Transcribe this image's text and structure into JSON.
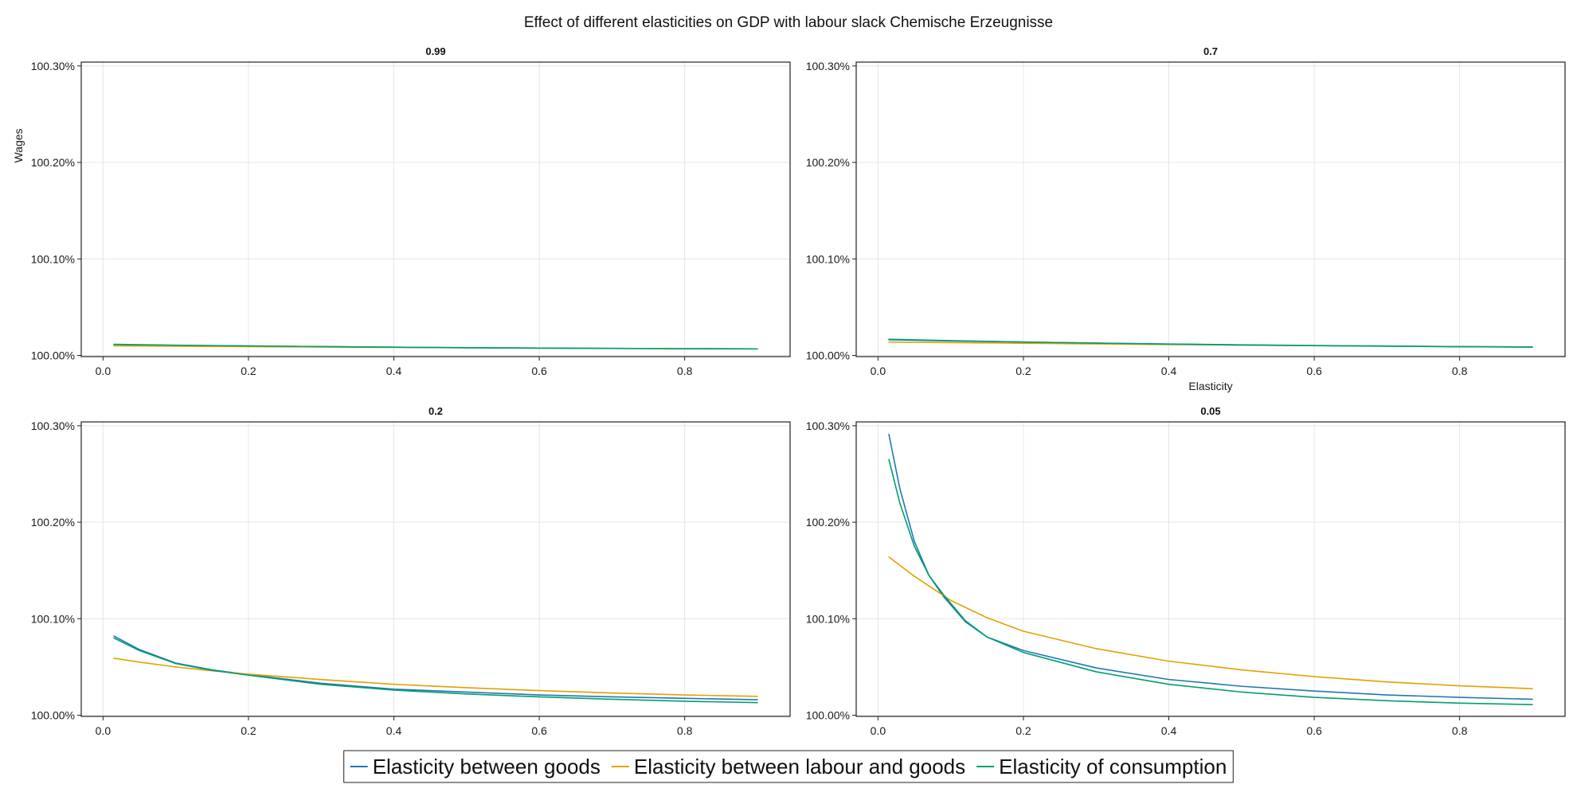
{
  "figure": {
    "title": "Effect of different elasticities on GDP with labour slack Chemische Erzeugnisse"
  },
  "legend": {
    "position": "bottom-center",
    "items": [
      {
        "label": "Elasticity between goods",
        "color": "#1f77b4"
      },
      {
        "label": "Elasticity between labour and goods",
        "color": "#e69f00"
      },
      {
        "label": "Elasticity of consumption",
        "color": "#009e73"
      }
    ]
  },
  "chart_data": [
    {
      "type": "line",
      "title": "0.99",
      "xlabel": "",
      "ylabel": "Wages",
      "xlim": [
        -0.03,
        0.945
      ],
      "ylim": [
        99.99875,
        100.304
      ],
      "xticks": [
        0.0,
        0.2,
        0.4,
        0.6,
        0.8
      ],
      "xtick_labels": [
        "0.0",
        "0.2",
        "0.4",
        "0.6",
        "0.8"
      ],
      "yticks": [
        100.0,
        100.1,
        100.2,
        100.3
      ],
      "ytick_labels": [
        "100.00%",
        "100.10%",
        "100.20%",
        "100.30%"
      ],
      "grid": true,
      "series": [
        {
          "name": "Elasticity between goods",
          "color": "#1f77b4",
          "x": [
            0.015,
            0.1,
            0.2,
            0.3,
            0.4,
            0.5,
            0.6,
            0.7,
            0.8,
            0.9
          ],
          "y": [
            100.0112,
            100.0104,
            100.0097,
            100.0091,
            100.0085,
            100.008,
            100.0076,
            100.0073,
            100.007,
            100.0068
          ]
        },
        {
          "name": "Elasticity between labour and goods",
          "color": "#e69f00",
          "x": [
            0.015,
            0.1,
            0.2,
            0.3,
            0.4,
            0.5,
            0.6,
            0.7,
            0.8,
            0.9
          ],
          "y": [
            100.0099,
            100.0095,
            100.0091,
            100.0087,
            100.0083,
            100.0079,
            100.0076,
            100.0073,
            100.007,
            100.0068
          ]
        },
        {
          "name": "Elasticity of consumption",
          "color": "#009e73",
          "x": [
            0.015,
            0.1,
            0.2,
            0.3,
            0.4,
            0.5,
            0.6,
            0.7,
            0.8,
            0.9
          ],
          "y": [
            100.0115,
            100.0106,
            100.0098,
            100.0091,
            100.0085,
            100.008,
            100.0076,
            100.0072,
            100.0069,
            100.0067
          ]
        }
      ]
    },
    {
      "type": "line",
      "title": "0.7",
      "xlabel": "Elasticity",
      "ylabel": "",
      "xlim": [
        -0.03,
        0.945
      ],
      "ylim": [
        99.99875,
        100.304
      ],
      "xticks": [
        0.0,
        0.2,
        0.4,
        0.6,
        0.8
      ],
      "xtick_labels": [
        "0.0",
        "0.2",
        "0.4",
        "0.6",
        "0.8"
      ],
      "yticks": [
        100.0,
        100.1,
        100.2,
        100.3
      ],
      "ytick_labels": [
        "100.00%",
        "100.10%",
        "100.20%",
        "100.30%"
      ],
      "grid": true,
      "series": [
        {
          "name": "Elasticity between goods",
          "color": "#1f77b4",
          "x": [
            0.015,
            0.1,
            0.2,
            0.3,
            0.4,
            0.5,
            0.6,
            0.7,
            0.8,
            0.9
          ],
          "y": [
            100.0162,
            100.015,
            100.0138,
            100.0127,
            100.0118,
            100.011,
            100.0103,
            100.0097,
            100.0091,
            100.0087
          ]
        },
        {
          "name": "Elasticity between labour and goods",
          "color": "#e69f00",
          "x": [
            0.015,
            0.1,
            0.2,
            0.3,
            0.4,
            0.5,
            0.6,
            0.7,
            0.8,
            0.9
          ],
          "y": [
            100.0138,
            100.0132,
            100.0126,
            100.0119,
            100.0113,
            100.0107,
            100.0101,
            100.0096,
            100.0091,
            100.0087
          ]
        },
        {
          "name": "Elasticity of consumption",
          "color": "#009e73",
          "x": [
            0.015,
            0.1,
            0.2,
            0.3,
            0.4,
            0.5,
            0.6,
            0.7,
            0.8,
            0.9
          ],
          "y": [
            100.0168,
            100.0153,
            100.0139,
            100.0127,
            100.0117,
            100.0108,
            100.0101,
            100.0095,
            100.009,
            100.0086
          ]
        }
      ]
    },
    {
      "type": "line",
      "title": "0.2",
      "xlabel": "",
      "ylabel": "",
      "xlim": [
        -0.03,
        0.945
      ],
      "ylim": [
        99.99875,
        100.304
      ],
      "xticks": [
        0.0,
        0.2,
        0.4,
        0.6,
        0.8
      ],
      "xtick_labels": [
        "0.0",
        "0.2",
        "0.4",
        "0.6",
        "0.8"
      ],
      "yticks": [
        100.0,
        100.1,
        100.2,
        100.3
      ],
      "ytick_labels": [
        "100.00%",
        "100.10%",
        "100.20%",
        "100.30%"
      ],
      "grid": true,
      "series": [
        {
          "name": "Elasticity between goods",
          "color": "#1f77b4",
          "x": [
            0.015,
            0.05,
            0.1,
            0.15,
            0.2,
            0.3,
            0.4,
            0.5,
            0.6,
            0.7,
            0.8,
            0.9
          ],
          "y": [
            100.082,
            100.068,
            100.054,
            100.047,
            100.042,
            100.033,
            100.027,
            100.024,
            100.021,
            100.019,
            100.0175,
            100.016
          ]
        },
        {
          "name": "Elasticity between labour and goods",
          "color": "#e69f00",
          "x": [
            0.015,
            0.05,
            0.1,
            0.15,
            0.2,
            0.3,
            0.4,
            0.5,
            0.6,
            0.7,
            0.8,
            0.9
          ],
          "y": [
            100.059,
            100.055,
            100.05,
            100.046,
            100.0425,
            100.037,
            100.032,
            100.0285,
            100.0255,
            100.023,
            100.021,
            100.0195
          ]
        },
        {
          "name": "Elasticity of consumption",
          "color": "#009e73",
          "x": [
            0.015,
            0.05,
            0.1,
            0.15,
            0.2,
            0.3,
            0.4,
            0.5,
            0.6,
            0.7,
            0.8,
            0.9
          ],
          "y": [
            100.08,
            100.067,
            100.0535,
            100.0465,
            100.0415,
            100.032,
            100.026,
            100.022,
            100.019,
            100.0165,
            100.0145,
            100.013
          ]
        }
      ]
    },
    {
      "type": "line",
      "title": "0.05",
      "xlabel": "",
      "ylabel": "",
      "xlim": [
        -0.03,
        0.945
      ],
      "ylim": [
        99.99875,
        100.304
      ],
      "xticks": [
        0.0,
        0.2,
        0.4,
        0.6,
        0.8
      ],
      "xtick_labels": [
        "0.0",
        "0.2",
        "0.4",
        "0.6",
        "0.8"
      ],
      "yticks": [
        100.0,
        100.1,
        100.2,
        100.3
      ],
      "ytick_labels": [
        "100.00%",
        "100.10%",
        "100.20%",
        "100.30%"
      ],
      "grid": true,
      "series": [
        {
          "name": "Elasticity between goods",
          "color": "#1f77b4",
          "x": [
            0.015,
            0.03,
            0.05,
            0.07,
            0.09,
            0.12,
            0.15,
            0.2,
            0.3,
            0.4,
            0.5,
            0.6,
            0.7,
            0.8,
            0.9
          ],
          "y": [
            100.291,
            100.235,
            100.18,
            100.145,
            100.123,
            100.097,
            100.081,
            100.067,
            100.049,
            100.037,
            100.03,
            100.025,
            100.021,
            100.0185,
            100.0165
          ]
        },
        {
          "name": "Elasticity between labour and goods",
          "color": "#e69f00",
          "x": [
            0.015,
            0.05,
            0.1,
            0.15,
            0.2,
            0.3,
            0.4,
            0.5,
            0.6,
            0.7,
            0.8,
            0.9
          ],
          "y": [
            100.164,
            100.144,
            100.119,
            100.101,
            100.087,
            100.069,
            100.056,
            100.047,
            100.04,
            100.0345,
            100.0305,
            100.0275
          ]
        },
        {
          "name": "Elasticity of consumption",
          "color": "#009e73",
          "x": [
            0.015,
            0.03,
            0.05,
            0.07,
            0.09,
            0.12,
            0.15,
            0.2,
            0.3,
            0.4,
            0.5,
            0.6,
            0.7,
            0.8,
            0.9
          ],
          "y": [
            100.265,
            100.22,
            100.175,
            100.145,
            100.125,
            100.098,
            100.081,
            100.065,
            100.045,
            100.032,
            100.024,
            100.0185,
            100.015,
            100.0125,
            100.011
          ]
        }
      ]
    }
  ]
}
